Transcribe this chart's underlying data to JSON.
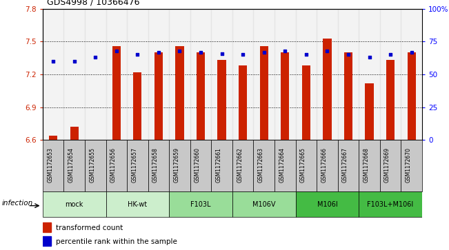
{
  "title": "GDS4998 / 10366476",
  "samples": [
    "GSM1172653",
    "GSM1172654",
    "GSM1172655",
    "GSM1172656",
    "GSM1172657",
    "GSM1172658",
    "GSM1172659",
    "GSM1172660",
    "GSM1172661",
    "GSM1172662",
    "GSM1172663",
    "GSM1172664",
    "GSM1172665",
    "GSM1172666",
    "GSM1172667",
    "GSM1172668",
    "GSM1172669",
    "GSM1172670"
  ],
  "bar_values": [
    6.64,
    6.72,
    6.6,
    7.46,
    7.22,
    7.4,
    7.46,
    7.4,
    7.33,
    7.28,
    7.46,
    7.4,
    7.28,
    7.53,
    7.4,
    7.12,
    7.33,
    7.4
  ],
  "percentile_values": [
    60,
    60,
    63,
    68,
    65,
    67,
    68,
    67,
    66,
    65,
    67,
    68,
    65,
    68,
    65,
    63,
    65,
    67
  ],
  "ylim_left": [
    6.6,
    7.8
  ],
  "ylim_right": [
    0,
    100
  ],
  "yticks_left": [
    6.6,
    6.9,
    7.2,
    7.5,
    7.8
  ],
  "yticks_right": [
    0,
    25,
    50,
    75,
    100
  ],
  "ytick_labels_right": [
    "0",
    "25",
    "50",
    "75",
    "100%"
  ],
  "bar_bottom": 6.6,
  "groups": [
    {
      "label": "mock",
      "start": 0,
      "end": 2
    },
    {
      "label": "HK-wt",
      "start": 3,
      "end": 5
    },
    {
      "label": "F103L",
      "start": 6,
      "end": 8
    },
    {
      "label": "M106V",
      "start": 9,
      "end": 11
    },
    {
      "label": "M106I",
      "start": 12,
      "end": 14
    },
    {
      "label": "F103L+M106I",
      "start": 15,
      "end": 17
    }
  ],
  "group_colors": [
    "#cceecc",
    "#cceecc",
    "#99dd99",
    "#99dd99",
    "#44bb44",
    "#44bb44"
  ],
  "bar_color": "#cc2200",
  "dot_color": "#0000cc",
  "infection_label": "infection",
  "legend1": "transformed count",
  "legend2": "percentile rank within the sample"
}
